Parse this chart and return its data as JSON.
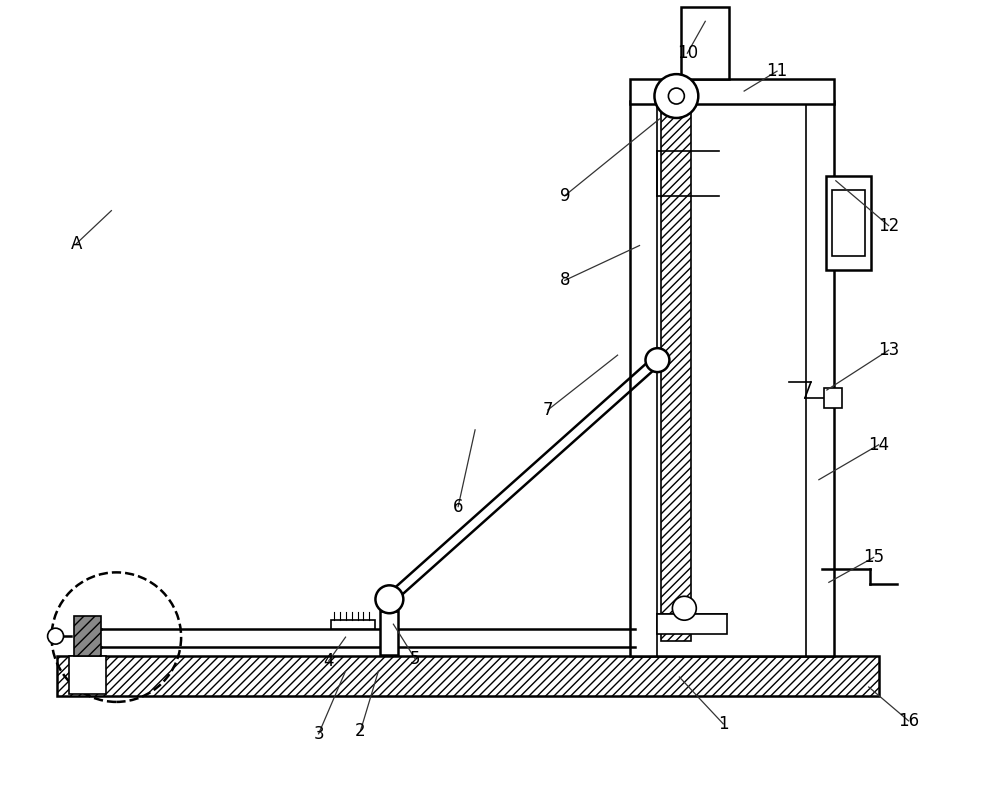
{
  "bg_color": "#ffffff",
  "line_color": "#000000",
  "figsize": [
    10.0,
    7.9
  ],
  "dpi": 100
}
